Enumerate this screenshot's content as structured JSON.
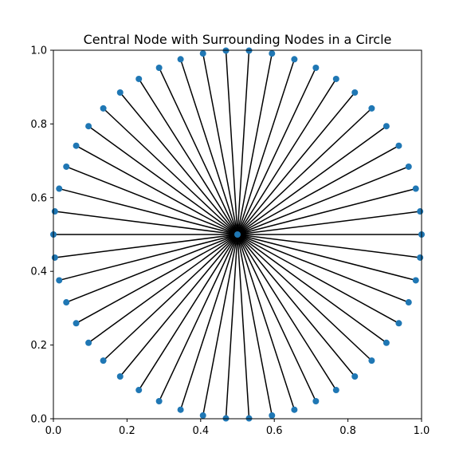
{
  "chart_data": {
    "type": "scatter",
    "title": "Central Node with Surrounding Nodes in a Circle",
    "xlabel": "",
    "ylabel": "",
    "xlim": [
      0,
      1
    ],
    "ylim": [
      0,
      1
    ],
    "grid": false,
    "x_ticks": [
      "0.0",
      "0.2",
      "0.4",
      "0.6",
      "0.8",
      "1.0"
    ],
    "y_ticks": [
      "0.0",
      "0.2",
      "0.4",
      "0.6",
      "0.8",
      "1.0"
    ],
    "center": {
      "x": 0.5,
      "y": 0.5
    },
    "radius": 0.5,
    "node_count": 50,
    "edge_color": "#000000",
    "node_color": "#1f77b4"
  }
}
